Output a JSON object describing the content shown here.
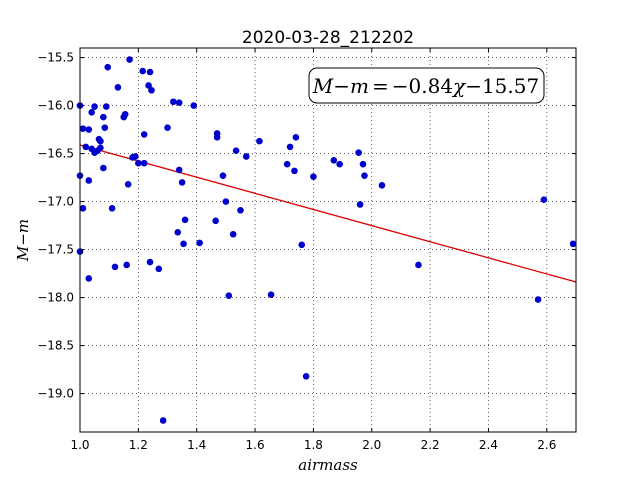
{
  "chart_data": {
    "type": "scatter",
    "title": "2020-03-28_212202",
    "xlabel": "airmass",
    "ylabel": "M−m",
    "xlim": [
      1.0,
      2.7
    ],
    "ylim": [
      -15.4,
      -19.4
    ],
    "x_ticks": [
      1.0,
      1.2,
      1.4,
      1.6,
      1.8,
      2.0,
      2.2,
      2.4,
      2.6
    ],
    "x_tick_labels": [
      "1.0",
      "1.2",
      "1.4",
      "1.6",
      "1.8",
      "2.0",
      "2.2",
      "2.4",
      "2.6"
    ],
    "y_ticks": [
      -15.5,
      -16.0,
      -16.5,
      -17.0,
      -17.5,
      -18.0,
      -18.5,
      -19.0
    ],
    "y_tick_labels": [
      "−15.5",
      "−16.0",
      "−16.5",
      "−17.0",
      "−17.5",
      "−18.0",
      "−18.5",
      "−19.0"
    ],
    "grid": true,
    "point_color": "#0000cc",
    "fit_color": "#dd0000",
    "fit": {
      "slope": -0.84,
      "intercept": -15.57,
      "x_range": [
        1.0,
        2.7
      ]
    },
    "annotation": {
      "lhs": "M",
      "minus1": "−",
      "m": "m",
      "eq": "=",
      "coef": "−0.84",
      "chi": "χ",
      "const": "−15.57"
    },
    "points": [
      [
        1.0,
        -16.0
      ],
      [
        1.0,
        -16.73
      ],
      [
        1.0,
        -17.52
      ],
      [
        1.01,
        -16.24
      ],
      [
        1.01,
        -17.07
      ],
      [
        1.02,
        -16.43
      ],
      [
        1.03,
        -17.8
      ],
      [
        1.03,
        -16.25
      ],
      [
        1.03,
        -16.78
      ],
      [
        1.04,
        -16.45
      ],
      [
        1.04,
        -16.07
      ],
      [
        1.05,
        -16.01
      ],
      [
        1.05,
        -16.49
      ],
      [
        1.06,
        -16.47
      ],
      [
        1.065,
        -16.35
      ],
      [
        1.07,
        -16.37
      ],
      [
        1.07,
        -16.44
      ],
      [
        1.08,
        -16.65
      ],
      [
        1.08,
        -16.12
      ],
      [
        1.085,
        -16.23
      ],
      [
        1.09,
        -16.01
      ],
      [
        1.095,
        -15.6
      ],
      [
        1.11,
        -17.07
      ],
      [
        1.12,
        -17.68
      ],
      [
        1.13,
        -15.81
      ],
      [
        1.15,
        -16.12
      ],
      [
        1.155,
        -16.09
      ],
      [
        1.16,
        -17.66
      ],
      [
        1.165,
        -16.82
      ],
      [
        1.17,
        -15.52
      ],
      [
        1.18,
        -16.54
      ],
      [
        1.19,
        -16.53
      ],
      [
        1.2,
        -16.6
      ],
      [
        1.215,
        -15.64
      ],
      [
        1.22,
        -16.3
      ],
      [
        1.22,
        -16.6
      ],
      [
        1.235,
        -15.79
      ],
      [
        1.24,
        -15.65
      ],
      [
        1.24,
        -17.63
      ],
      [
        1.245,
        -15.84
      ],
      [
        1.27,
        -17.7
      ],
      [
        1.285,
        -19.28
      ],
      [
        1.3,
        -16.23
      ],
      [
        1.32,
        -15.96
      ],
      [
        1.335,
        -17.32
      ],
      [
        1.34,
        -15.97
      ],
      [
        1.34,
        -16.67
      ],
      [
        1.35,
        -16.8
      ],
      [
        1.355,
        -17.44
      ],
      [
        1.36,
        -17.19
      ],
      [
        1.39,
        -16.0
      ],
      [
        1.41,
        -17.43
      ],
      [
        1.465,
        -17.2
      ],
      [
        1.47,
        -16.29
      ],
      [
        1.47,
        -16.33
      ],
      [
        1.49,
        -16.73
      ],
      [
        1.5,
        -17.0
      ],
      [
        1.51,
        -17.98
      ],
      [
        1.525,
        -17.34
      ],
      [
        1.535,
        -16.47
      ],
      [
        1.55,
        -17.09
      ],
      [
        1.57,
        -16.53
      ],
      [
        1.615,
        -16.37
      ],
      [
        1.655,
        -17.97
      ],
      [
        1.71,
        -16.61
      ],
      [
        1.72,
        -16.43
      ],
      [
        1.735,
        -16.68
      ],
      [
        1.74,
        -16.33
      ],
      [
        1.76,
        -17.45
      ],
      [
        1.775,
        -18.82
      ],
      [
        1.8,
        -16.74
      ],
      [
        1.87,
        -16.57
      ],
      [
        1.89,
        -16.61
      ],
      [
        1.955,
        -16.49
      ],
      [
        1.96,
        -17.03
      ],
      [
        1.97,
        -16.61
      ],
      [
        1.975,
        -16.73
      ],
      [
        2.035,
        -16.83
      ],
      [
        2.16,
        -17.66
      ],
      [
        2.57,
        -18.02
      ],
      [
        2.59,
        -16.98
      ],
      [
        2.69,
        -17.44
      ]
    ]
  }
}
